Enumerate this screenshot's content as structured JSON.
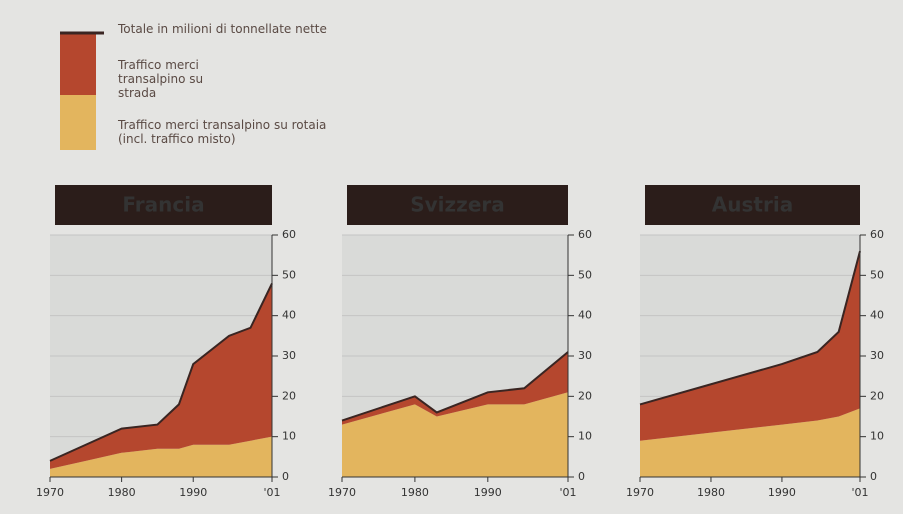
{
  "legend": [
    {
      "label": "Totale in milioni di tonnellate nette",
      "color": "#3a2522"
    },
    {
      "label": "Traffico merci transalpino su strada",
      "color": "#b5472e"
    },
    {
      "label": "Traffico merci transalpino su rotaia (incl. traffico misto)",
      "color": "#e3b55e"
    }
  ],
  "chart_data": [
    {
      "type": "area",
      "title": "Francia",
      "x": [
        1970,
        1975,
        1980,
        1985,
        1988,
        1990,
        1995,
        1998,
        2001
      ],
      "series": [
        {
          "name": "rotaia",
          "color": "#e3b55e",
          "values": [
            2,
            4,
            6,
            7,
            7,
            8,
            8,
            9,
            10
          ]
        },
        {
          "name": "strada",
          "color": "#b5472e",
          "values": [
            2,
            4,
            6,
            6,
            11,
            20,
            27,
            28,
            38
          ]
        }
      ],
      "xlim": [
        1970,
        2001
      ],
      "xticks": [
        1970,
        1980,
        1990,
        {
          "value": 2001,
          "label": "'01"
        }
      ],
      "ylim": [
        0,
        60
      ],
      "yticks": [
        0,
        10,
        20,
        30,
        40,
        50,
        60
      ],
      "stacked": true
    },
    {
      "type": "area",
      "title": "Svizzera",
      "x": [
        1970,
        1980,
        1983,
        1990,
        1995,
        2001
      ],
      "series": [
        {
          "name": "rotaia",
          "color": "#e3b55e",
          "values": [
            13,
            18,
            15,
            18,
            18,
            21
          ]
        },
        {
          "name": "strada",
          "color": "#b5472e",
          "values": [
            1,
            2,
            1,
            3,
            4,
            10
          ]
        }
      ],
      "xlim": [
        1970,
        2001
      ],
      "xticks": [
        1970,
        1980,
        1990,
        {
          "value": 2001,
          "label": "'01"
        }
      ],
      "ylim": [
        0,
        60
      ],
      "yticks": [
        0,
        10,
        20,
        30,
        40,
        50,
        60
      ],
      "stacked": true
    },
    {
      "type": "area",
      "title": "Austria",
      "x": [
        1970,
        1980,
        1990,
        1995,
        1998,
        2001
      ],
      "series": [
        {
          "name": "rotaia",
          "color": "#e3b55e",
          "values": [
            9,
            11,
            13,
            14,
            15,
            17
          ]
        },
        {
          "name": "strada",
          "color": "#b5472e",
          "values": [
            9,
            12,
            15,
            17,
            21,
            39
          ]
        }
      ],
      "xlim": [
        1970,
        2001
      ],
      "xticks": [
        1970,
        1980,
        1990,
        {
          "value": 2001,
          "label": "'01"
        }
      ],
      "ylim": [
        0,
        60
      ],
      "yticks": [
        0,
        10,
        20,
        30,
        40,
        50,
        60
      ],
      "stacked": true
    }
  ]
}
